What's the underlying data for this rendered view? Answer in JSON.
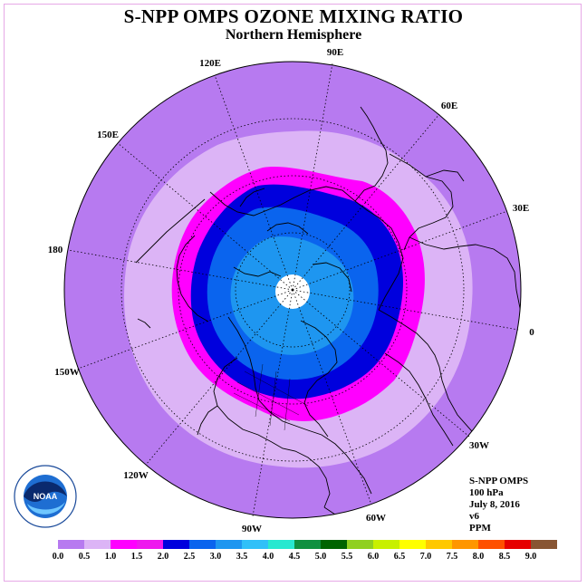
{
  "title": "S-NPP OMPS OZONE MIXING RATIO",
  "subtitle": "Northern Hemisphere",
  "longitude_labels": [
    "90E",
    "60E",
    "30E",
    "0",
    "30W",
    "60W",
    "90W",
    "120W",
    "150W",
    "180",
    "150E",
    "120E"
  ],
  "info": {
    "instrument": "S-NPP OMPS",
    "level": "100 hPa",
    "date": "July 8, 2016",
    "version": "v6",
    "units": "PPM"
  },
  "logo_text": "NOAA",
  "legend": {
    "ticks": [
      "0.0",
      "0.5",
      "1.0",
      "1.5",
      "2.0",
      "2.5",
      "3.0",
      "3.5",
      "4.0",
      "4.5",
      "5.0",
      "5.5",
      "6.0",
      "6.5",
      "7.0",
      "7.5",
      "8.0",
      "8.5",
      "9.0"
    ],
    "colors": [
      "#b77af0",
      "#dcb4f6",
      "#ff00ff",
      "#ee18ee",
      "#0000dd",
      "#0a64ee",
      "#1e96f0",
      "#30c0f8",
      "#28e8d0",
      "#109040",
      "#006400",
      "#90d020",
      "#c8f000",
      "#ffff00",
      "#ffc800",
      "#ff9600",
      "#ff5000",
      "#e60000",
      "#885533"
    ]
  }
}
